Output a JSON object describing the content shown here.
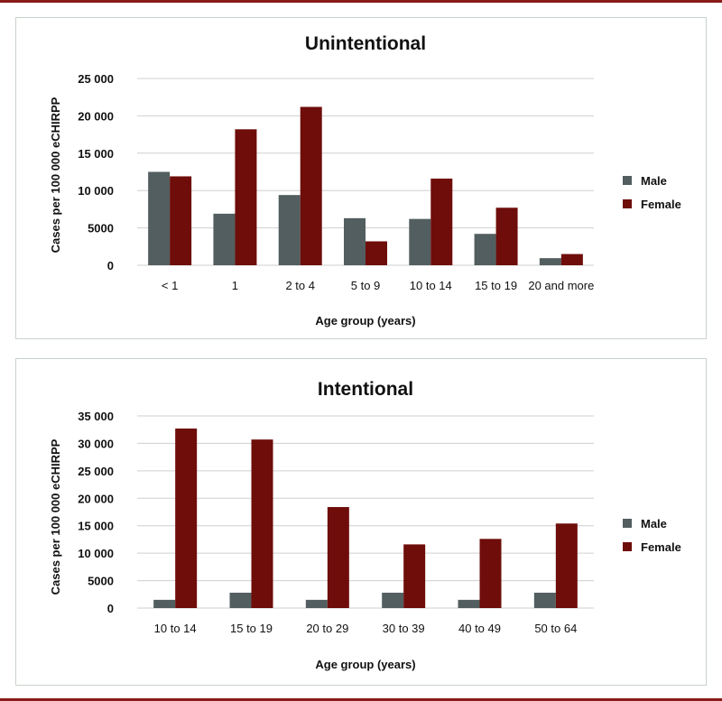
{
  "colors": {
    "male": "#525e5f",
    "female": "#6e0d0a",
    "rule": "#8b1a1a",
    "panel_border": "#c9d3c9"
  },
  "chart_data": [
    {
      "type": "bar",
      "title": "Unintentional",
      "xlabel": "Age group (years)",
      "ylabel": "Cases per 100 000 eCHIRPP",
      "ylim": [
        0,
        25000
      ],
      "yticks": [
        0,
        5000,
        10000,
        15000,
        20000,
        25000
      ],
      "ytick_labels": [
        "0",
        "5000",
        "10 000",
        "15 000",
        "20 000",
        "25 000"
      ],
      "categories": [
        "< 1",
        "1",
        "2 to 4",
        "5 to 9",
        "10 to 14",
        "15 to 19",
        "20 and more"
      ],
      "series": [
        {
          "name": "Male",
          "color": "#525e5f",
          "values": [
            12500,
            6900,
            9400,
            6300,
            6200,
            4200,
            950
          ]
        },
        {
          "name": "Female",
          "color": "#6e0d0a",
          "values": [
            11900,
            18200,
            21200,
            3200,
            11600,
            7700,
            1500
          ]
        }
      ],
      "legend": "right",
      "grid": true
    },
    {
      "type": "bar",
      "title": "Intentional",
      "xlabel": "Age group (years)",
      "ylabel": "Cases per 100 000 eCHIRPP",
      "ylim": [
        0,
        35000
      ],
      "yticks": [
        0,
        5000,
        10000,
        15000,
        20000,
        25000,
        30000,
        35000
      ],
      "ytick_labels": [
        "0",
        "5000",
        "10 000",
        "15 000",
        "20 000",
        "25 000",
        "30 000",
        "35 000"
      ],
      "categories": [
        "10 to 14",
        "15 to 19",
        "20 to 29",
        "30 to 39",
        "40 to 49",
        "50 to 64"
      ],
      "series": [
        {
          "name": "Male",
          "color": "#525e5f",
          "values": [
            1500,
            2800,
            1500,
            2800,
            1500,
            2800
          ]
        },
        {
          "name": "Female",
          "color": "#6e0d0a",
          "values": [
            32700,
            30700,
            18400,
            11600,
            12600,
            15400
          ]
        }
      ],
      "legend": "right",
      "grid": true
    }
  ]
}
